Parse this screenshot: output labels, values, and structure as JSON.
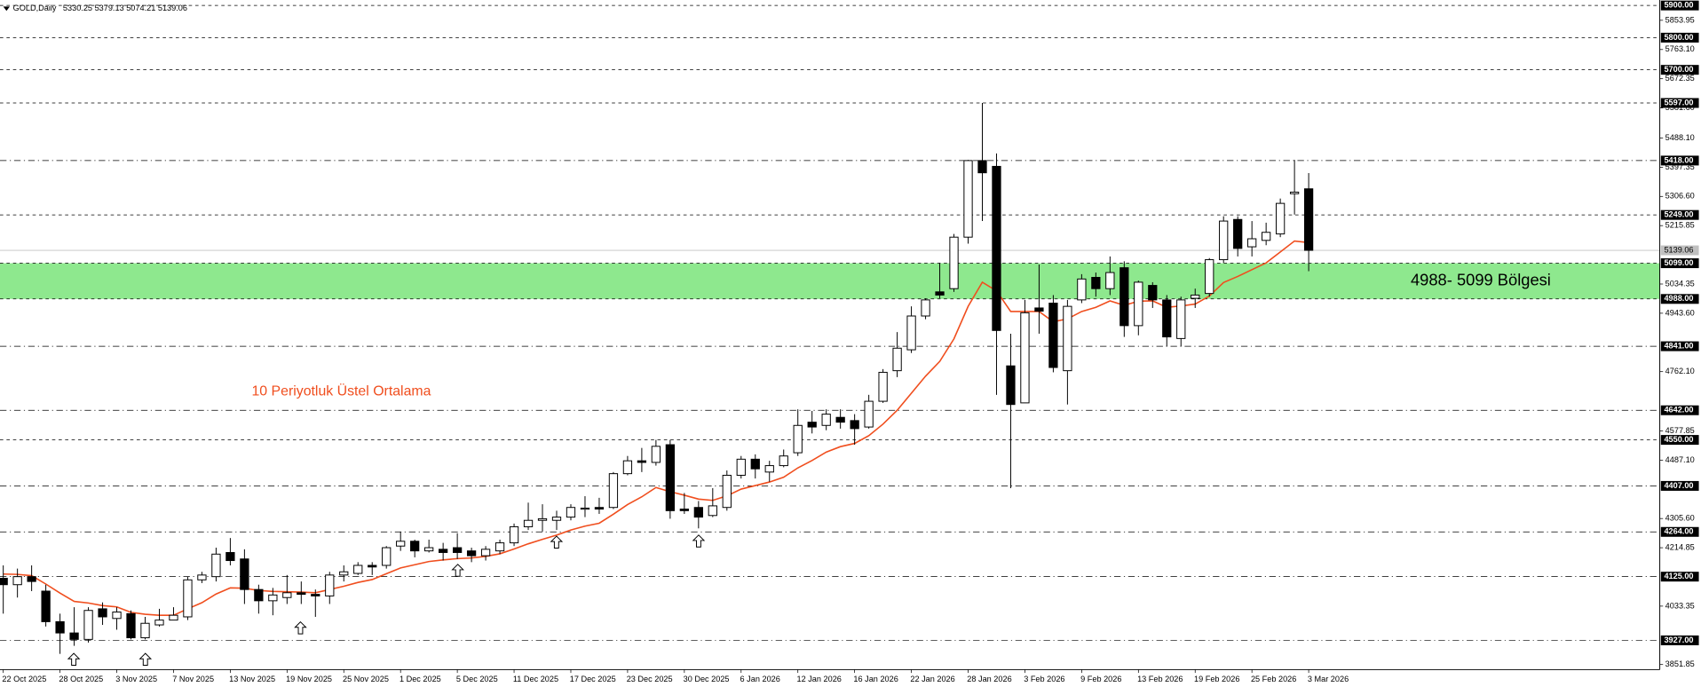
{
  "chart_data": {
    "type": "candlestick",
    "title": "GOLD,Daily",
    "annotation": "10 Periyotluk Üstel Ortalama",
    "annotation_color": "#f04e1e",
    "categories": [
      "22 Oct 2025",
      null,
      null,
      null,
      "28 Oct 2025",
      null,
      null,
      null,
      "3 Nov 2025",
      null,
      null,
      null,
      "7 Nov 2025",
      null,
      null,
      null,
      "13 Nov 2025",
      null,
      null,
      null,
      "19 Nov 2025",
      null,
      null,
      null,
      "25 Nov 2025",
      null,
      null,
      null,
      "1 Dec 2025",
      null,
      null,
      null,
      "5 Dec 2025",
      null,
      null,
      null,
      "11 Dec 2025",
      null,
      null,
      null,
      "17 Dec 2025",
      null,
      null,
      null,
      "23 Dec 2025",
      null,
      null,
      null,
      "30 Dec 2025",
      null,
      null,
      null,
      "6 Jan 2026",
      null,
      null,
      null,
      "12 Jan 2026",
      null,
      null,
      null,
      "16 Jan 2026",
      null,
      null,
      null,
      "22 Jan 2026",
      null,
      null,
      null,
      "28 Jan 2026",
      null,
      null,
      null,
      "3 Feb 2026",
      null,
      null,
      null,
      "9 Feb 2026",
      null,
      null,
      null,
      "13 Feb 2026",
      null,
      null,
      null,
      "19 Feb 2026",
      null,
      null,
      null,
      "25 Feb 2026",
      null,
      null,
      null,
      "3 Mar 2026"
    ],
    "open": [
      4120,
      4100,
      4125,
      4080,
      3985,
      3950,
      3930,
      4025,
      3995,
      4010,
      3935,
      3975,
      3990,
      4000,
      4115,
      4125,
      4200,
      4180,
      4085,
      4050,
      4060,
      4075,
      4070,
      4065,
      4130,
      4135,
      4160,
      4160,
      4220,
      4235,
      4205,
      4210,
      4215,
      4205,
      4190,
      4205,
      4230,
      4280,
      4300,
      4300,
      4310,
      4335,
      4340,
      4340,
      4445,
      4485,
      4480,
      4535,
      4335,
      4340,
      4315,
      4340,
      4440,
      4490,
      4450,
      4470,
      4510,
      4605,
      4595,
      4620,
      4610,
      4590,
      4670,
      4765,
      4830,
      4935,
      5010,
      5020,
      5180,
      5418,
      5400,
      4780,
      4665,
      4960,
      4975,
      4765,
      4985,
      5055,
      5020,
      5085,
      4905,
      5030,
      4985,
      4865,
      4990,
      5005,
      5110,
      5235,
      5150,
      5170,
      5190,
      5315,
      5330.25
    ],
    "high": [
      4160,
      4150,
      4160,
      4100,
      4010,
      4030,
      4030,
      4045,
      4030,
      4020,
      4000,
      4025,
      4030,
      4125,
      4140,
      4215,
      4245,
      4210,
      4100,
      4090,
      4130,
      4110,
      4085,
      4140,
      4160,
      4170,
      4170,
      4220,
      4265,
      4240,
      4240,
      4230,
      4260,
      4215,
      4220,
      4240,
      4290,
      4355,
      4350,
      4330,
      4350,
      4375,
      4370,
      4450,
      4500,
      4525,
      4550,
      4550,
      4385,
      4360,
      4400,
      4455,
      4500,
      4505,
      4485,
      4520,
      4645,
      4640,
      4645,
      4645,
      4630,
      4690,
      4770,
      4885,
      4965,
      4990,
      5100,
      5190,
      5420,
      5597,
      5440,
      4880,
      4985,
      5095,
      5000,
      4985,
      5065,
      5070,
      5120,
      5105,
      5045,
      5040,
      5000,
      4995,
      5020,
      5115,
      5245,
      5245,
      5230,
      5225,
      5300,
      5420,
      5379.13
    ],
    "low": [
      4010,
      4060,
      4080,
      3970,
      3885,
      3910,
      3920,
      3975,
      3960,
      3930,
      3930,
      3970,
      3990,
      3990,
      4105,
      4110,
      4160,
      4040,
      4010,
      4005,
      4040,
      4040,
      4000,
      4040,
      4110,
      4130,
      4130,
      4150,
      4205,
      4185,
      4200,
      4175,
      4180,
      4170,
      4175,
      4195,
      4220,
      4270,
      4265,
      4270,
      4300,
      4310,
      4320,
      4335,
      4440,
      4450,
      4470,
      4305,
      4320,
      4275,
      4310,
      4330,
      4430,
      4430,
      4420,
      4465,
      4500,
      4570,
      4580,
      4585,
      4535,
      4585,
      4665,
      4745,
      4820,
      4925,
      4990,
      5010,
      5160,
      5230,
      4690,
      4400,
      4665,
      4880,
      4760,
      4660,
      4975,
      4995,
      5000,
      4870,
      4875,
      4960,
      4840,
      4840,
      4960,
      4995,
      5100,
      5120,
      5120,
      5155,
      5180,
      5250,
      5074.21
    ],
    "close": [
      4100,
      4125,
      4110,
      3985,
      3950,
      3930,
      4020,
      4000,
      4015,
      3935,
      3980,
      3990,
      4005,
      4115,
      4130,
      4195,
      4175,
      4085,
      4050,
      4068,
      4075,
      4070,
      4065,
      4130,
      4140,
      4160,
      4155,
      4215,
      4235,
      4205,
      4215,
      4200,
      4200,
      4190,
      4210,
      4230,
      4280,
      4300,
      4305,
      4310,
      4340,
      4338,
      4335,
      4445,
      4485,
      4480,
      4530,
      4330,
      4330,
      4310,
      4345,
      4440,
      4490,
      4460,
      4470,
      4500,
      4595,
      4590,
      4630,
      4605,
      4585,
      4670,
      4760,
      4835,
      4935,
      4985,
      5000,
      5180,
      5418,
      5380,
      4890,
      4660,
      4945,
      4950,
      4775,
      4965,
      5050,
      5020,
      5070,
      4905,
      5040,
      4985,
      4870,
      4985,
      5000,
      5110,
      5230,
      5145,
      5175,
      5195,
      5285,
      5320,
      5139.06
    ],
    "ema": {
      "color": "#f04e1e",
      "values": [
        4133,
        4132,
        4128,
        4102,
        4074,
        4048,
        4043,
        4035,
        4031,
        4014,
        4008,
        4005,
        4005,
        4025,
        4044,
        4071,
        4090,
        4089,
        4082,
        4079,
        4078,
        4077,
        4075,
        4085,
        4095,
        4107,
        4116,
        4134,
        4152,
        4162,
        4172,
        4177,
        4181,
        4183,
        4188,
        4196,
        4211,
        4227,
        4241,
        4254,
        4270,
        4282,
        4291,
        4319,
        4349,
        4373,
        4402,
        4389,
        4378,
        4366,
        4362,
        4376,
        4397,
        4408,
        4419,
        4434,
        4463,
        4486,
        4512,
        4529,
        4539,
        4563,
        4599,
        4642,
        4695,
        4748,
        4794,
        4864,
        4965,
        5040,
        5013,
        4949,
        4949,
        4949,
        4917,
        4926,
        4949,
        4962,
        4982,
        4968,
        4981,
        4982,
        4962,
        4966,
        4972,
        4997,
        5039,
        5058,
        5079,
        5100,
        5134,
        5168,
        5163
      ]
    },
    "ylim": [
      3836,
      5917
    ],
    "yticks": [
      5853.95,
      {
        "value": 5763.1,
        "label": "5763.10"
      },
      5672.35,
      {
        "value": 5581.6,
        "label": "5581.60"
      },
      {
        "value": 5488.1,
        "label": "5488.10"
      },
      5397.35,
      {
        "value": 5306.6,
        "label": "5306.60"
      },
      5215.85,
      5034.35,
      {
        "value": 4943.6,
        "label": "4943.60"
      },
      {
        "value": 4762.1,
        "label": "4762.10"
      },
      4577.85,
      {
        "value": 4487.1,
        "label": "4487.10"
      },
      {
        "value": 4305.6,
        "label": "4305.60"
      },
      4214.85,
      4033.35,
      3851.85
    ],
    "levels": [
      {
        "value": 5900,
        "label": "5900.00",
        "style": "dash"
      },
      {
        "value": 5800,
        "label": "5800.00",
        "style": "dash"
      },
      {
        "value": 5700,
        "label": "5700.00",
        "style": "dash"
      },
      {
        "value": 5597,
        "label": "5597.00",
        "style": "dash"
      },
      {
        "value": 5418,
        "label": "5418.00",
        "style": "dashdot"
      },
      {
        "value": 5249,
        "label": "5249.00",
        "style": "dash"
      },
      {
        "value": 5099,
        "label": "5099.00",
        "style": "dash"
      },
      {
        "value": 4988,
        "label": "4988.00",
        "style": "dash"
      },
      {
        "value": 4841,
        "label": "4841.00",
        "style": "dashdot"
      },
      {
        "value": 4642,
        "label": "4642.00",
        "style": "dashdot"
      },
      {
        "value": 4550,
        "label": "4550.00",
        "style": "dash"
      },
      {
        "value": 4407,
        "label": "4407.00",
        "style": "dashdot"
      },
      {
        "value": 4264,
        "label": "4264.00",
        "style": "dashdot"
      },
      {
        "value": 4125,
        "label": "4125.00",
        "style": "dashdot"
      },
      {
        "value": 3927,
        "label": "3927.00",
        "style": "dashdot"
      }
    ],
    "zone": {
      "from": 4988,
      "to": 5099,
      "label": "4988- 5099 Bölgesi",
      "color": "#8ee88e"
    },
    "bull_color": "#ffffff",
    "bear_color": "#000000"
  }
}
